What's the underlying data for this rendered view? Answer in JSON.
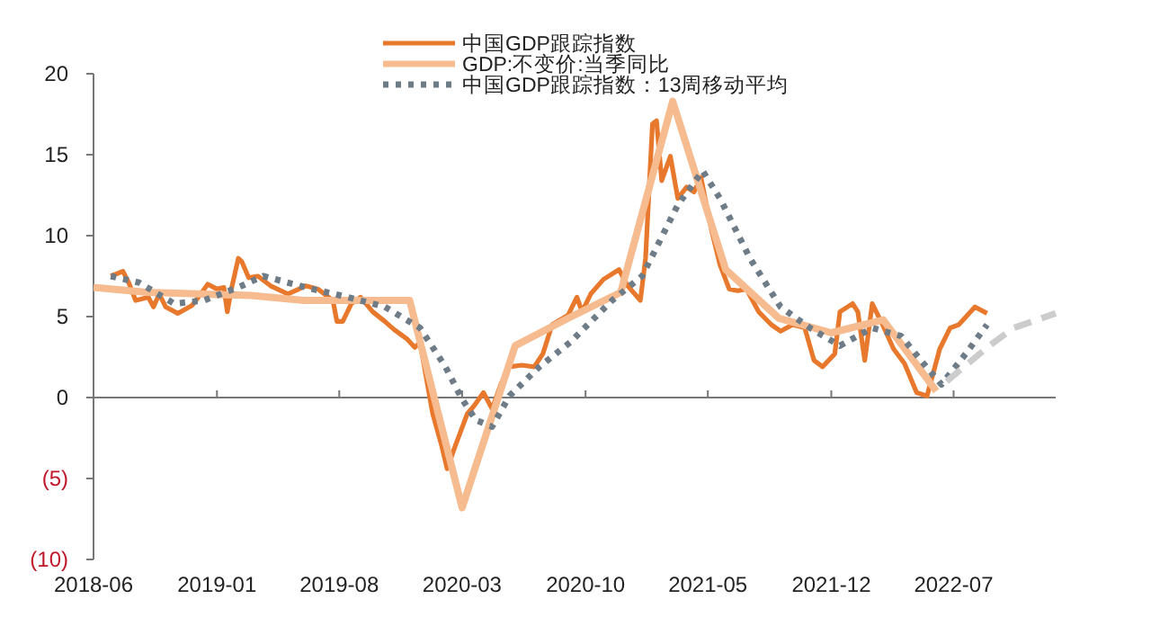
{
  "chart_data": {
    "type": "line",
    "xlim": [
      "2018-06",
      "2022-12-25"
    ],
    "xticks": [
      "2018-06",
      "2019-01",
      "2019-08",
      "2020-03",
      "2020-10",
      "2021-05",
      "2021-12",
      "2022-07"
    ],
    "ylim": [
      -10,
      20
    ],
    "yticks": [
      {
        "value": -10,
        "label": "(10)"
      },
      {
        "value": -5,
        "label": "(5)"
      },
      0,
      5,
      10,
      15,
      20
    ],
    "grid": false,
    "legend": "top",
    "ref_lines": [
      {
        "axis": "y",
        "value": 0,
        "color": "#777777"
      }
    ],
    "series": [
      {
        "name": "中国GDP跟踪指数",
        "color": "#e8782c",
        "line_style": "solid",
        "x": [
          "2018-07-01",
          "2018-07-22",
          "2018-08-01",
          "2018-08-13",
          "2018-09-04",
          "2018-09-13",
          "2018-09-23",
          "2018-10-04",
          "2018-10-25",
          "2018-11-19",
          "2018-12-04",
          "2018-12-16",
          "2019-01-01",
          "2019-01-13",
          "2019-01-19",
          "2019-01-26",
          "2019-02-07",
          "2019-02-13",
          "2019-02-25",
          "2019-03-13",
          "2019-04-04",
          "2019-05-04",
          "2019-06-04",
          "2019-06-25",
          "2019-07-21",
          "2019-07-28",
          "2019-08-07",
          "2019-08-22",
          "2019-09-07",
          "2019-09-28",
          "2019-10-19",
          "2019-11-04",
          "2019-11-27",
          "2019-12-10",
          "2019-12-19",
          "2020-01-10",
          "2020-01-25",
          "2020-02-04",
          "2020-02-19",
          "2020-03-10",
          "2020-03-22",
          "2020-04-07",
          "2020-04-22",
          "2020-05-07",
          "2020-05-21",
          "2020-06-13",
          "2020-07-04",
          "2020-07-19",
          "2020-08-04",
          "2020-09-01",
          "2020-09-16",
          "2020-09-25",
          "2020-10-10",
          "2020-11-01",
          "2020-11-28",
          "2020-12-13",
          "2021-01-04",
          "2021-01-13",
          "2021-01-25",
          "2021-02-01",
          "2021-02-10",
          "2021-02-25",
          "2021-03-10",
          "2021-03-25",
          "2021-04-07",
          "2021-04-19",
          "2021-05-07",
          "2021-05-22",
          "2021-06-07",
          "2021-06-22",
          "2021-07-07",
          "2021-07-28",
          "2021-08-19",
          "2021-09-04",
          "2021-09-25",
          "2021-10-16",
          "2021-11-01",
          "2021-11-16",
          "2021-12-07",
          "2021-12-16",
          "2022-01-07",
          "2022-01-16",
          "2022-01-28",
          "2022-02-10",
          "2022-02-28",
          "2022-03-19",
          "2022-04-07",
          "2022-04-28",
          "2022-05-16",
          "2022-06-07",
          "2022-06-25",
          "2022-07-10",
          "2022-08-07",
          "2022-08-28"
        ],
        "values": [
          7.5,
          7.8,
          7.1,
          6.0,
          6.2,
          5.6,
          6.4,
          5.6,
          5.2,
          5.7,
          6.4,
          7.0,
          6.7,
          6.8,
          5.3,
          6.7,
          8.6,
          8.4,
          7.4,
          7.5,
          6.9,
          6.4,
          6.9,
          6.7,
          6.0,
          4.7,
          4.7,
          5.8,
          6.2,
          5.3,
          4.7,
          4.2,
          3.6,
          3.1,
          3.4,
          -1.0,
          -2.9,
          -4.4,
          -2.9,
          -1.0,
          -0.5,
          0.3,
          -0.7,
          0.8,
          1.9,
          2.0,
          1.9,
          2.7,
          4.5,
          5.1,
          6.2,
          5.3,
          6.4,
          7.3,
          7.9,
          6.9,
          6.0,
          8.6,
          16.9,
          17.1,
          13.4,
          14.9,
          12.3,
          13.0,
          12.7,
          13.6,
          10.4,
          8.2,
          6.7,
          6.6,
          6.7,
          5.3,
          4.5,
          4.1,
          4.5,
          4.3,
          2.3,
          1.9,
          2.7,
          5.3,
          5.8,
          5.3,
          2.3,
          5.8,
          4.5,
          3.0,
          2.1,
          0.3,
          0.1,
          3.0,
          4.3,
          4.5,
          5.6,
          5.2
        ]
      },
      {
        "name": "GDP:不变价:当季同比",
        "color": "#f6bb8f",
        "line_style": "solid",
        "x": [
          "2018-06",
          "2018-09",
          "2018-12",
          "2019-03",
          "2019-06",
          "2019-09",
          "2019-12",
          "2020-03",
          "2020-06",
          "2020-09",
          "2020-12",
          "2021-03",
          "2021-06",
          "2021-09",
          "2021-12",
          "2022-03",
          "2022-06"
        ],
        "values": [
          6.8,
          6.5,
          6.4,
          6.3,
          6.0,
          6.0,
          6.0,
          -6.8,
          3.2,
          4.9,
          6.5,
          18.3,
          7.9,
          4.9,
          4.0,
          4.8,
          0.4
        ]
      },
      {
        "name": "中国GDP跟踪指数：13周移动平均",
        "color": "#6e7c88",
        "line_style": "dotted",
        "x": [
          "2018-07-01",
          "2018-08-19",
          "2018-10-19",
          "2018-12-10",
          "2019-02-13",
          "2019-03-22",
          "2019-06-16",
          "2019-08-16",
          "2019-10-19",
          "2019-12-19",
          "2020-02-01",
          "2020-03-01",
          "2020-03-25",
          "2020-04-22",
          "2020-05-22",
          "2020-07-13",
          "2020-09-04",
          "2020-11-16",
          "2021-01-07",
          "2021-03-10",
          "2021-04-22",
          "2021-05-22",
          "2021-07-13",
          "2021-09-04",
          "2021-10-25",
          "2021-12-16",
          "2022-02-10",
          "2022-04-01",
          "2022-05-10",
          "2022-06-10",
          "2022-07-22",
          "2022-08-28"
        ],
        "values": [
          7.5,
          7.1,
          5.8,
          6.0,
          6.9,
          7.5,
          6.7,
          6.2,
          5.6,
          4.3,
          1.9,
          -0.1,
          -1.4,
          -1.8,
          0.1,
          1.9,
          3.4,
          6.0,
          7.5,
          11.9,
          14.0,
          12.3,
          8.6,
          5.6,
          4.3,
          3.2,
          4.3,
          3.8,
          2.1,
          0.8,
          2.7,
          4.5
        ]
      },
      {
        "color": "#cccccc",
        "line_style": "dashed",
        "x": [
          "2022-06-19",
          "2022-09-01",
          "2022-10-13",
          "2022-12-25"
        ],
        "values": [
          1.0,
          3.2,
          4.3,
          5.2
        ]
      }
    ]
  }
}
